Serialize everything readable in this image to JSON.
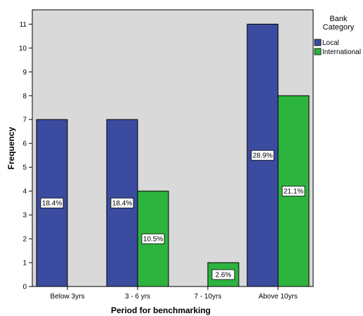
{
  "chart_data": {
    "type": "bar",
    "categories": [
      "Below 3yrs",
      "3 - 6 yrs",
      "7 - 10yrs",
      "Above 10yrs"
    ],
    "series": [
      {
        "name": "Local",
        "color": "#3b4ba0",
        "values": [
          7,
          7,
          0,
          11
        ],
        "labels": [
          "18.4%",
          "18.4%",
          "",
          "28.9%"
        ]
      },
      {
        "name": "International",
        "color": "#2db43f",
        "values": [
          0,
          4,
          1,
          8
        ],
        "labels": [
          "",
          "10.5%",
          "2.6%",
          "21.1%"
        ]
      }
    ],
    "xlabel": "Period for benchmarking",
    "ylabel": "Frequency",
    "ylim": [
      0,
      11.6
    ],
    "yticks": [
      0,
      1,
      2,
      3,
      4,
      5,
      6,
      7,
      8,
      9,
      10,
      11
    ],
    "legend": {
      "title_line1": "Bank",
      "title_line2": "Category",
      "position": "top-right"
    },
    "plot_background": "#d9d9d9",
    "grid": false
  }
}
